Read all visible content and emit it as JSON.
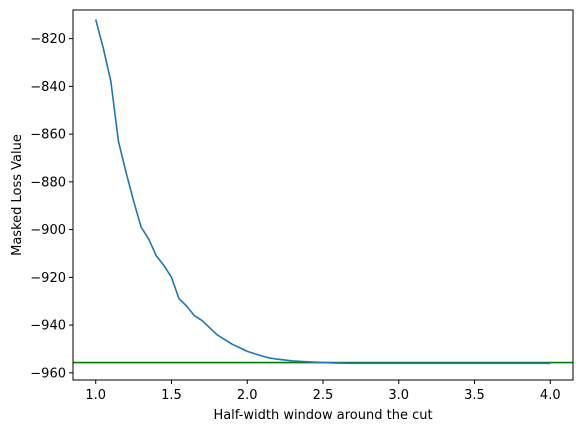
{
  "chart_data": {
    "type": "line",
    "title": "",
    "xlabel": "Half-width window around the cut",
    "ylabel": "Masked Loss Value",
    "xlim": [
      0.85,
      4.15
    ],
    "ylim": [
      -963,
      -808
    ],
    "xticks": [
      1.0,
      1.5,
      2.0,
      2.5,
      3.0,
      3.5,
      4.0
    ],
    "xtick_labels": [
      "1.0",
      "1.5",
      "2.0",
      "2.5",
      "3.0",
      "3.5",
      "4.0"
    ],
    "yticks": [
      -820,
      -840,
      -860,
      -880,
      -900,
      -920,
      -940,
      -960
    ],
    "ytick_labels": [
      "−820",
      "−840",
      "−860",
      "−880",
      "−900",
      "−920",
      "−940",
      "−960"
    ],
    "grid": false,
    "series": [
      {
        "color": "#1f77b4",
        "x": [
          1.0,
          1.05,
          1.1,
          1.15,
          1.2,
          1.25,
          1.3,
          1.35,
          1.4,
          1.45,
          1.5,
          1.55,
          1.6,
          1.65,
          1.7,
          1.75,
          1.8,
          1.85,
          1.9,
          1.95,
          2.0,
          2.05,
          2.1,
          2.15,
          2.2,
          2.3,
          2.4,
          2.5,
          2.6,
          2.7,
          2.8,
          2.9,
          3.0,
          3.1,
          3.2,
          3.3,
          3.4,
          3.5,
          3.6,
          3.7,
          3.8,
          3.9,
          4.0
        ],
        "y": [
          -812,
          -824,
          -838,
          -863,
          -876,
          -888,
          -899,
          -904,
          -911,
          -915,
          -920,
          -929,
          -932,
          -936,
          -938,
          -941,
          -944,
          -946,
          -948,
          -949.5,
          -951,
          -952,
          -953,
          -953.8,
          -954.3,
          -955.0,
          -955.4,
          -955.7,
          -955.9,
          -956.0,
          -956.0,
          -956.0,
          -956.0,
          -956.0,
          -956.0,
          -956.0,
          -956.0,
          -956.0,
          -956.0,
          -956.0,
          -956.0,
          -956.0,
          -956.0
        ]
      }
    ],
    "hlines": [
      {
        "y": -955.7,
        "color": "#008000"
      }
    ]
  }
}
